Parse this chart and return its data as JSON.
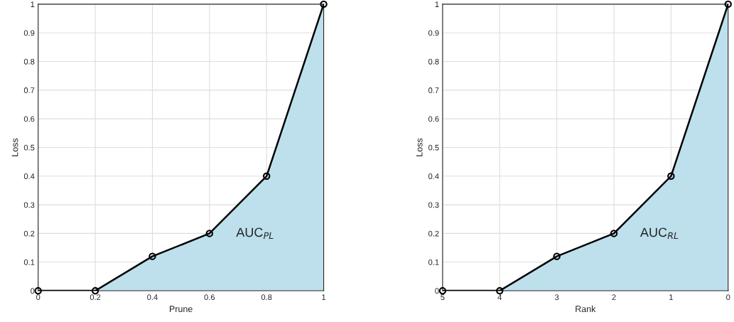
{
  "chart_data": [
    {
      "type": "area",
      "xlabel": "Prune",
      "ylabel": "Loss",
      "x": [
        0,
        0.2,
        0.4,
        0.6,
        0.8,
        1
      ],
      "marker": "circle",
      "series": [
        {
          "color": "#bde0ec",
          "values": [
            0,
            0,
            0.12,
            0.2,
            0.4,
            1
          ]
        }
      ],
      "xlim": [
        0,
        1
      ],
      "xticks": [
        0,
        0.2,
        0.4,
        0.6,
        0.8,
        1
      ],
      "ylim": [
        0,
        1
      ],
      "yticks": [
        0,
        0.1,
        0.2,
        0.3,
        0.4,
        0.5,
        0.6,
        0.7,
        0.8,
        0.9,
        1
      ],
      "grid": true,
      "annotations": [
        "AUC$_{PL}$"
      ]
    },
    {
      "type": "area",
      "xlabel": "Rank",
      "ylabel": "Loss",
      "x": [
        5,
        4,
        3,
        2,
        1,
        0
      ],
      "marker": "circle",
      "series": [
        {
          "color": "#bde0ec",
          "values": [
            0,
            0,
            0.12,
            0.2,
            0.4,
            1
          ]
        }
      ],
      "xlim": [
        5,
        0
      ],
      "xticks": [
        5,
        4,
        3,
        2,
        1,
        0
      ],
      "ylim": [
        0,
        1
      ],
      "yticks": [
        0,
        0.1,
        0.2,
        0.3,
        0.4,
        0.5,
        0.6,
        0.7,
        0.8,
        0.9,
        1
      ],
      "grid": true,
      "annotations": [
        "AUC$_{RL}$"
      ]
    }
  ]
}
